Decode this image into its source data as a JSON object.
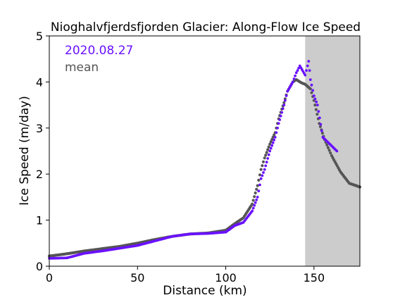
{
  "chart_data": {
    "type": "scatter",
    "title": "Nioghalvfjerdsfjorden Glacier: Along-Flow Ice Speed",
    "xlabel": "Distance (km)",
    "ylabel": "Ice Speed (m/day)",
    "xlim": [
      0,
      176
    ],
    "ylim": [
      0,
      5
    ],
    "xticks": [
      "0",
      "50",
      "100",
      "150"
    ],
    "yticks": [
      "0",
      "1",
      "2",
      "3",
      "4",
      "5"
    ],
    "grid": false,
    "legend_position": "top-left",
    "shaded_region": {
      "x_start": 145,
      "x_end": 176,
      "color": "#cccccc"
    },
    "series": [
      {
        "name": "2020.08.27",
        "color": "#6a11ff",
        "x": [
          0,
          10,
          20,
          30,
          40,
          50,
          60,
          70,
          80,
          90,
          100,
          105,
          110,
          115,
          118,
          120,
          122,
          125,
          128,
          130,
          133,
          135,
          138,
          140,
          142,
          145,
          147,
          148,
          150,
          152,
          155,
          163
        ],
        "y": [
          0.17,
          0.18,
          0.28,
          0.33,
          0.39,
          0.45,
          0.55,
          0.65,
          0.7,
          0.71,
          0.74,
          0.88,
          0.95,
          1.2,
          1.5,
          1.9,
          2.1,
          2.5,
          2.8,
          3.1,
          3.5,
          3.8,
          4.0,
          4.2,
          4.35,
          4.15,
          4.45,
          4.05,
          3.7,
          3.5,
          2.8,
          2.5
        ]
      },
      {
        "name": "mean",
        "color": "#555555",
        "x": [
          0,
          10,
          20,
          30,
          40,
          50,
          60,
          70,
          80,
          90,
          100,
          105,
          110,
          115,
          118,
          120,
          122,
          125,
          128,
          130,
          133,
          135,
          138,
          140,
          143,
          145,
          148,
          150,
          153,
          156,
          160,
          165,
          170,
          176
        ],
        "y": [
          0.22,
          0.27,
          0.33,
          0.38,
          0.43,
          0.5,
          0.58,
          0.65,
          0.7,
          0.72,
          0.78,
          0.92,
          1.05,
          1.35,
          1.75,
          2.1,
          2.35,
          2.65,
          2.9,
          3.2,
          3.55,
          3.8,
          4.0,
          4.05,
          3.98,
          3.95,
          3.85,
          3.6,
          3.1,
          2.75,
          2.4,
          2.05,
          1.8,
          1.72
        ]
      }
    ]
  }
}
